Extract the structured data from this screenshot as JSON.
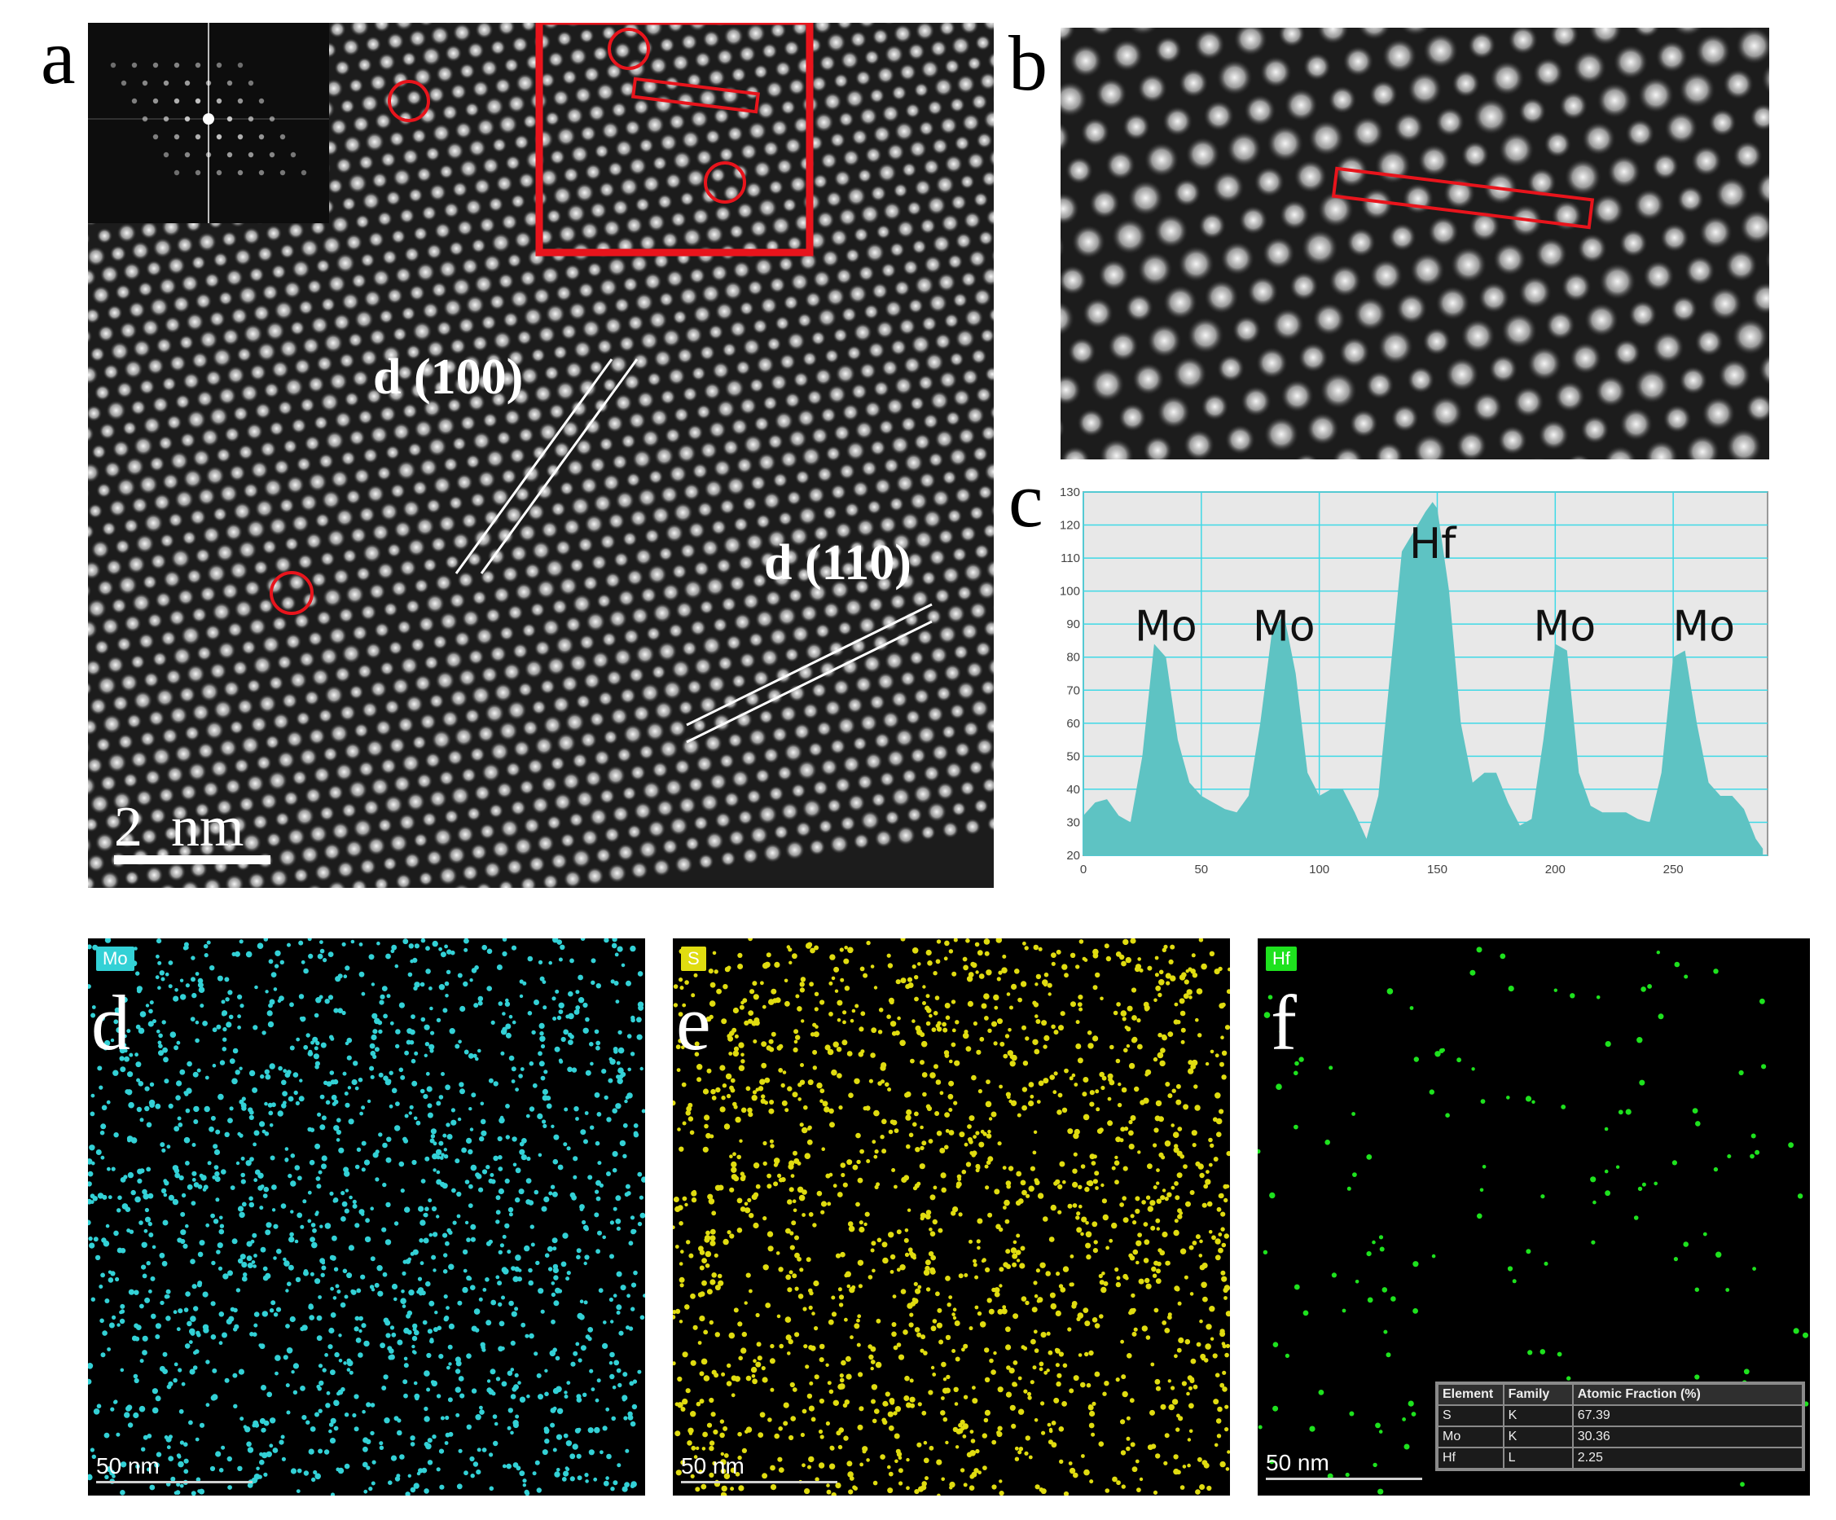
{
  "figure": {
    "panel_labels": {
      "a": "a",
      "b": "b",
      "c": "c",
      "d": "d",
      "e": "e",
      "f": "f"
    },
    "panel_a": {
      "scale_bar": "2  nm",
      "plane_labels": [
        "d (100)",
        "d (110)"
      ],
      "annotation_color": "#e8141c"
    },
    "panel_c": {
      "chart_data": {
        "type": "area",
        "xlim": [
          0,
          290
        ],
        "ylim": [
          20,
          130
        ],
        "x_ticks": [
          0,
          50,
          100,
          150,
          200,
          250
        ],
        "y_ticks": [
          20,
          30,
          40,
          50,
          60,
          70,
          80,
          90,
          100,
          110,
          120,
          130
        ],
        "grid": true,
        "fill_color": "#5ec3c3",
        "background_color": "#e8e8e8",
        "grid_color": "#3fd9e6",
        "x": [
          0,
          5,
          10,
          15,
          20,
          25,
          30,
          35,
          40,
          45,
          50,
          55,
          60,
          65,
          70,
          75,
          80,
          85,
          90,
          95,
          100,
          105,
          110,
          115,
          120,
          125,
          130,
          135,
          140,
          145,
          148,
          150,
          155,
          160,
          165,
          170,
          175,
          180,
          185,
          190,
          195,
          200,
          205,
          210,
          215,
          220,
          225,
          230,
          235,
          240,
          245,
          250,
          255,
          260,
          265,
          270,
          275,
          280,
          285,
          288
        ],
        "values": [
          32,
          36,
          37,
          32,
          30,
          50,
          84,
          80,
          55,
          42,
          38,
          36,
          34,
          33,
          38,
          60,
          88,
          93,
          75,
          45,
          38,
          40,
          40,
          33,
          25,
          38,
          75,
          112,
          118,
          124,
          127,
          125,
          100,
          60,
          42,
          45,
          45,
          36,
          29,
          31,
          55,
          84,
          82,
          45,
          35,
          33,
          33,
          33,
          31,
          30,
          45,
          80,
          82,
          60,
          42,
          38,
          38,
          34,
          25,
          22
        ],
        "peak_labels": [
          {
            "text": "Mo",
            "x": 35,
            "y": 85
          },
          {
            "text": "Mo",
            "x": 85,
            "y": 85
          },
          {
            "text": "Hf",
            "x": 148,
            "y": 110
          },
          {
            "text": "Mo",
            "x": 204,
            "y": 85
          },
          {
            "text": "Mo",
            "x": 263,
            "y": 85
          }
        ]
      }
    },
    "eds_maps": [
      {
        "element": "Mo",
        "color": "#33d1d6",
        "scale": "50 nm"
      },
      {
        "element": "S",
        "color": "#e0dc10",
        "scale": "50 nm"
      },
      {
        "element": "Hf",
        "color": "#1ee21e",
        "scale": "50 nm"
      }
    ],
    "eds_table": {
      "headers": [
        "Element",
        "Family",
        "Atomic Fraction (%)"
      ],
      "rows": [
        [
          "S",
          "K",
          "67.39"
        ],
        [
          "Mo",
          "K",
          "30.36"
        ],
        [
          "Hf",
          "L",
          "2.25"
        ]
      ]
    }
  }
}
